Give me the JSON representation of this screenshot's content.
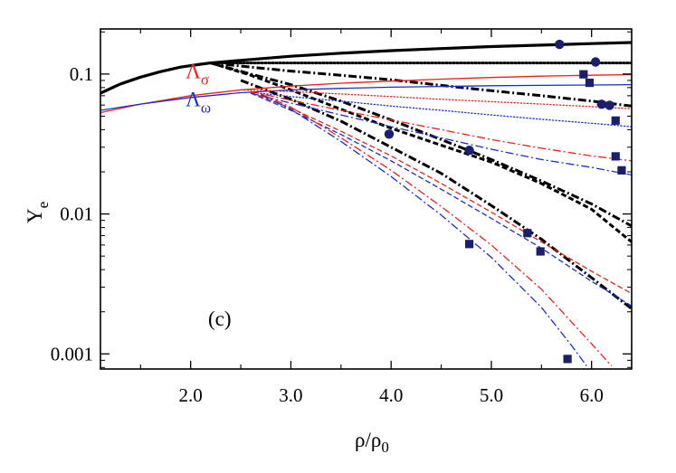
{
  "chart_data": {
    "type": "line",
    "panel_label": "(c)",
    "xlabel": {
      "main": "ρ/ρ",
      "sub": "0"
    },
    "ylabel": {
      "main": "Y",
      "sub": "e"
    },
    "x_scale": "linear",
    "y_scale": "log",
    "xlim": [
      1.1,
      6.4
    ],
    "ylim": [
      0.00078,
      0.21
    ],
    "x_ticks": [
      2.0,
      3.0,
      4.0,
      5.0,
      6.0
    ],
    "x_tick_labels": [
      "2.0",
      "3.0",
      "4.0",
      "5.0",
      "6.0"
    ],
    "y_ticks": [
      0.001,
      0.01,
      0.1
    ],
    "y_tick_labels": [
      "0.001",
      "0.01",
      "0.1"
    ],
    "grid": false,
    "legend": "none",
    "annotations": [
      {
        "text": "Λ",
        "sub": "σ",
        "color": "#e8211b",
        "x": 1.95,
        "y": 0.093
      },
      {
        "text": "Λ",
        "sub": "ω",
        "color": "#1a2fc9",
        "x": 1.95,
        "y": 0.059
      }
    ],
    "series": [
      {
        "color": "#000000",
        "style": "solid",
        "width": 3.2,
        "points": [
          [
            1.1,
            0.073
          ],
          [
            1.3,
            0.085
          ],
          [
            1.5,
            0.095
          ],
          [
            1.7,
            0.104
          ],
          [
            1.9,
            0.112
          ],
          [
            2.1,
            0.1175
          ],
          [
            2.2,
            0.12
          ],
          [
            2.6,
            0.127
          ],
          [
            3.0,
            0.134
          ],
          [
            3.5,
            0.141
          ],
          [
            4.0,
            0.147
          ],
          [
            4.5,
            0.152
          ],
          [
            5.0,
            0.157
          ],
          [
            5.5,
            0.161
          ],
          [
            6.0,
            0.165
          ],
          [
            6.4,
            0.168
          ]
        ]
      },
      {
        "color": "#000000",
        "style": "dotted",
        "width": 3,
        "points": [
          [
            2.2,
            0.12
          ],
          [
            2.6,
            0.12
          ],
          [
            3.0,
            0.12
          ],
          [
            4.0,
            0.12
          ],
          [
            5.0,
            0.12
          ],
          [
            6.0,
            0.12
          ],
          [
            6.4,
            0.12
          ]
        ]
      },
      {
        "color": "#000000",
        "style": "dashdot",
        "width": 3,
        "points": [
          [
            2.2,
            0.12
          ],
          [
            2.6,
            0.112
          ],
          [
            3.0,
            0.105
          ],
          [
            3.5,
            0.098
          ],
          [
            4.0,
            0.091
          ],
          [
            4.5,
            0.083
          ],
          [
            5.0,
            0.076
          ],
          [
            5.5,
            0.07
          ],
          [
            6.0,
            0.064
          ],
          [
            6.4,
            0.059
          ]
        ]
      },
      {
        "color": "#000000",
        "style": "dashdot",
        "width": 3,
        "points": [
          [
            2.2,
            0.12
          ],
          [
            2.6,
            0.1
          ],
          [
            3.0,
            0.084
          ],
          [
            3.5,
            0.064
          ],
          [
            4.0,
            0.047
          ],
          [
            4.5,
            0.034
          ],
          [
            5.0,
            0.0245
          ],
          [
            5.5,
            0.0172
          ],
          [
            6.0,
            0.0118
          ],
          [
            6.4,
            0.0082
          ]
        ]
      },
      {
        "color": "#000000",
        "style": "dashed",
        "width": 3,
        "points": [
          [
            2.2,
            0.12
          ],
          [
            2.6,
            0.098
          ],
          [
            3.0,
            0.077
          ],
          [
            3.5,
            0.056
          ],
          [
            4.0,
            0.041
          ],
          [
            4.5,
            0.031
          ],
          [
            5.0,
            0.0235
          ],
          [
            5.5,
            0.0165
          ],
          [
            6.0,
            0.0108
          ],
          [
            6.4,
            0.0063
          ]
        ]
      },
      {
        "color": "#000000",
        "style": "dashdot",
        "width": 3,
        "points": [
          [
            2.5,
            0.09
          ],
          [
            3.0,
            0.066
          ],
          [
            3.5,
            0.046
          ],
          [
            4.0,
            0.03
          ],
          [
            4.5,
            0.0195
          ],
          [
            5.0,
            0.0115
          ],
          [
            5.5,
            0.0066
          ],
          [
            6.0,
            0.0035
          ],
          [
            6.4,
            0.0021
          ]
        ]
      },
      {
        "color": "#e8211b",
        "style": "solid",
        "width": 1.3,
        "points": [
          [
            1.1,
            0.053
          ],
          [
            1.5,
            0.061
          ],
          [
            2.0,
            0.07
          ],
          [
            2.5,
            0.077
          ],
          [
            3.0,
            0.082
          ],
          [
            3.5,
            0.086
          ],
          [
            4.0,
            0.089
          ],
          [
            4.5,
            0.092
          ],
          [
            5.0,
            0.0945
          ],
          [
            5.5,
            0.0965
          ],
          [
            6.0,
            0.098
          ],
          [
            6.4,
            0.099
          ]
        ]
      },
      {
        "color": "#1a2fc9",
        "style": "solid",
        "width": 1.3,
        "points": [
          [
            1.1,
            0.055
          ],
          [
            1.5,
            0.061
          ],
          [
            2.0,
            0.068
          ],
          [
            2.5,
            0.0735
          ],
          [
            3.0,
            0.077
          ],
          [
            3.5,
            0.079
          ],
          [
            4.0,
            0.0805
          ],
          [
            4.5,
            0.0815
          ],
          [
            5.0,
            0.0825
          ],
          [
            5.5,
            0.083
          ],
          [
            6.0,
            0.0835
          ],
          [
            6.4,
            0.084
          ]
        ]
      },
      {
        "color": "#e8211b",
        "style": "dotted",
        "width": 1.3,
        "points": [
          [
            2.5,
            0.077
          ],
          [
            3.0,
            0.075
          ],
          [
            3.5,
            0.072
          ],
          [
            4.0,
            0.069
          ],
          [
            4.5,
            0.066
          ],
          [
            5.0,
            0.0635
          ],
          [
            5.5,
            0.061
          ],
          [
            6.0,
            0.0585
          ],
          [
            6.4,
            0.0565
          ]
        ]
      },
      {
        "color": "#1a2fc9",
        "style": "dotted",
        "width": 1.3,
        "points": [
          [
            2.6,
            0.074
          ],
          [
            3.0,
            0.069
          ],
          [
            3.5,
            0.064
          ],
          [
            4.0,
            0.059
          ],
          [
            4.5,
            0.055
          ],
          [
            5.0,
            0.051
          ],
          [
            5.5,
            0.0475
          ],
          [
            6.0,
            0.0445
          ],
          [
            6.4,
            0.042
          ]
        ]
      },
      {
        "color": "#e8211b",
        "style": "dashdot",
        "width": 1.3,
        "points": [
          [
            2.6,
            0.075
          ],
          [
            3.0,
            0.065
          ],
          [
            3.5,
            0.055
          ],
          [
            4.0,
            0.047
          ],
          [
            4.5,
            0.04
          ],
          [
            5.0,
            0.034
          ],
          [
            5.5,
            0.0295
          ],
          [
            6.0,
            0.026
          ],
          [
            6.4,
            0.024
          ]
        ]
      },
      {
        "color": "#1a2fc9",
        "style": "dashdot",
        "width": 1.3,
        "points": [
          [
            2.6,
            0.073
          ],
          [
            3.0,
            0.062
          ],
          [
            3.5,
            0.051
          ],
          [
            4.0,
            0.042
          ],
          [
            4.5,
            0.035
          ],
          [
            5.0,
            0.029
          ],
          [
            5.5,
            0.0245
          ],
          [
            6.0,
            0.0215
          ],
          [
            6.4,
            0.019
          ]
        ]
      },
      {
        "color": "#e8211b",
        "style": "dashed",
        "width": 1.3,
        "points": [
          [
            2.6,
            0.074
          ],
          [
            3.0,
            0.057
          ],
          [
            3.5,
            0.039
          ],
          [
            4.0,
            0.026
          ],
          [
            4.5,
            0.0165
          ],
          [
            5.0,
            0.0103
          ],
          [
            5.5,
            0.0063
          ],
          [
            6.0,
            0.0039
          ],
          [
            6.4,
            0.0027
          ]
        ]
      },
      {
        "color": "#1a2fc9",
        "style": "dashed",
        "width": 1.3,
        "points": [
          [
            2.6,
            0.073
          ],
          [
            3.0,
            0.055
          ],
          [
            3.5,
            0.037
          ],
          [
            4.0,
            0.024
          ],
          [
            4.5,
            0.015
          ],
          [
            5.0,
            0.0093
          ],
          [
            5.5,
            0.0057
          ],
          [
            6.0,
            0.0033
          ],
          [
            6.4,
            0.0022
          ]
        ]
      },
      {
        "color": "#e8211b",
        "style": "dashdot",
        "width": 1.3,
        "points": [
          [
            2.7,
            0.072
          ],
          [
            3.0,
            0.058
          ],
          [
            3.5,
            0.035
          ],
          [
            4.0,
            0.0205
          ],
          [
            4.5,
            0.0113
          ],
          [
            5.0,
            0.006
          ],
          [
            5.5,
            0.0029
          ],
          [
            6.0,
            0.00118
          ],
          [
            6.2,
            0.00082
          ]
        ]
      },
      {
        "color": "#1a2fc9",
        "style": "dashdot",
        "width": 1.3,
        "points": [
          [
            2.7,
            0.071
          ],
          [
            3.0,
            0.056
          ],
          [
            3.5,
            0.033
          ],
          [
            4.0,
            0.0185
          ],
          [
            4.5,
            0.0098
          ],
          [
            5.0,
            0.0049
          ],
          [
            5.5,
            0.00215
          ],
          [
            5.8,
            0.00115
          ],
          [
            5.95,
            0.00082
          ]
        ]
      }
    ],
    "markers": [
      {
        "shape": "circle",
        "color": "#1b1f6b",
        "points": [
          [
            5.68,
            0.163
          ],
          [
            6.04,
            0.122
          ],
          [
            6.1,
            0.0608
          ],
          [
            6.18,
            0.0598
          ],
          [
            3.98,
            0.0372
          ],
          [
            4.78,
            0.0285
          ]
        ]
      },
      {
        "shape": "square",
        "color": "#1b1f6b",
        "points": [
          [
            5.92,
            0.0995
          ],
          [
            5.98,
            0.0865
          ],
          [
            6.24,
            0.0465
          ],
          [
            6.24,
            0.0258
          ],
          [
            6.3,
            0.0205
          ],
          [
            4.78,
            0.0061
          ],
          [
            5.36,
            0.0073
          ],
          [
            5.49,
            0.0054
          ],
          [
            5.76,
            0.00092
          ]
        ]
      }
    ]
  }
}
